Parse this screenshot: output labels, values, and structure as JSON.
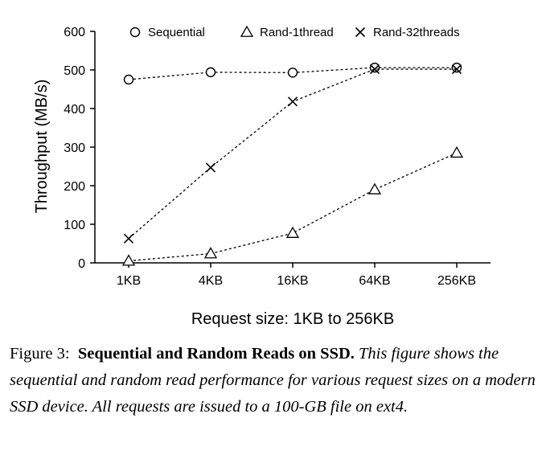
{
  "chart_data": {
    "type": "line",
    "categories": [
      "1KB",
      "4KB",
      "16KB",
      "64KB",
      "256KB"
    ],
    "series": [
      {
        "name": "Sequential",
        "marker": "circle",
        "values": [
          475,
          494,
          493,
          506,
          506
        ]
      },
      {
        "name": "Rand-1thread",
        "marker": "triangle",
        "values": [
          5,
          24,
          77,
          190,
          285
        ]
      },
      {
        "name": "Rand-32threads",
        "marker": "cross",
        "values": [
          63,
          247,
          418,
          502,
          502
        ]
      }
    ],
    "xlabel": "Request size: 1KB to 256KB",
    "ylabel": "Throughput (MB/s)",
    "ylim": [
      0,
      600
    ],
    "yticks": [
      0,
      100,
      200,
      300,
      400,
      500,
      600
    ],
    "grid": false,
    "line_style": "dashed",
    "legend_position": "top"
  },
  "caption": {
    "label": "Figure 3:",
    "title": "Sequential and Random Reads on SSD.",
    "body": "This figure shows the sequential and random read performance for various request sizes on a modern SSD device. All requests are issued to a 100-GB file on ext4."
  }
}
